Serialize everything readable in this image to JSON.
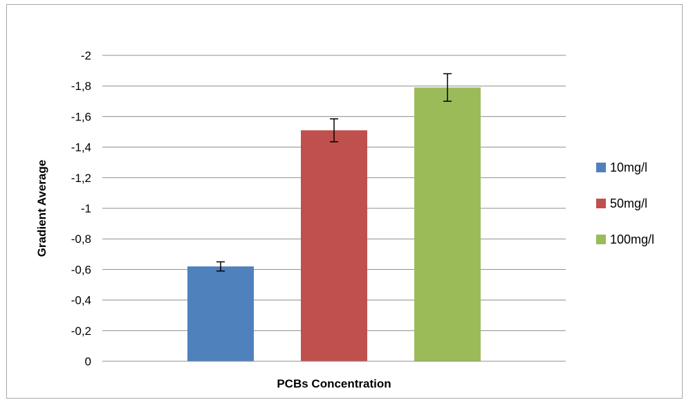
{
  "chart_data": {
    "type": "bar",
    "title": "",
    "xlabel": "PCBs Concentration",
    "ylabel": "Gradient Average",
    "ylim": [
      0,
      -2
    ],
    "y_ticks": [
      "0",
      "-0,2",
      "-0,4",
      "-0,6",
      "-0,8",
      "-1",
      "-1,2",
      "-1,4",
      "-1,6",
      "-1,8",
      "-2"
    ],
    "y_tick_values": [
      0,
      -0.2,
      -0.4,
      -0.6,
      -0.8,
      -1,
      -1.2,
      -1.4,
      -1.6,
      -1.8,
      -2
    ],
    "grid": true,
    "legend_position": "right",
    "series": [
      {
        "name": "10mg/l",
        "value": -0.62,
        "error": 0.03,
        "color": "#4F81BD"
      },
      {
        "name": "50mg/l",
        "value": -1.51,
        "error": 0.075,
        "color": "#C0504D"
      },
      {
        "name": "100mg/l",
        "value": -1.79,
        "error": 0.09,
        "color": "#9BBB59"
      }
    ]
  }
}
